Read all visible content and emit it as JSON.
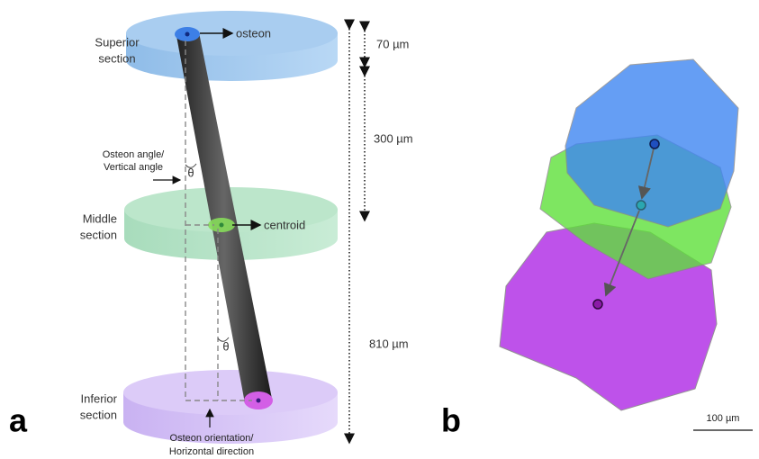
{
  "panel_a": {
    "panel_label": "a",
    "superior_label": [
      "Superior",
      "section"
    ],
    "middle_label": [
      "Middle",
      "section"
    ],
    "inferior_label": [
      "Inferior",
      "section"
    ],
    "osteon_label": "osteon",
    "centroid_label": "centroid",
    "angle_label": [
      "Osteon angle/",
      "Vertical angle"
    ],
    "orientation_label": [
      "Osteon orientation/",
      "Horizontal direction"
    ],
    "theta_labels": [
      "θ",
      "θ"
    ],
    "distance_labels": [
      "70 µm",
      "300 µm",
      "810 µm"
    ]
  },
  "panel_b": {
    "panel_label": "b",
    "scale_label": "100 µm"
  }
}
